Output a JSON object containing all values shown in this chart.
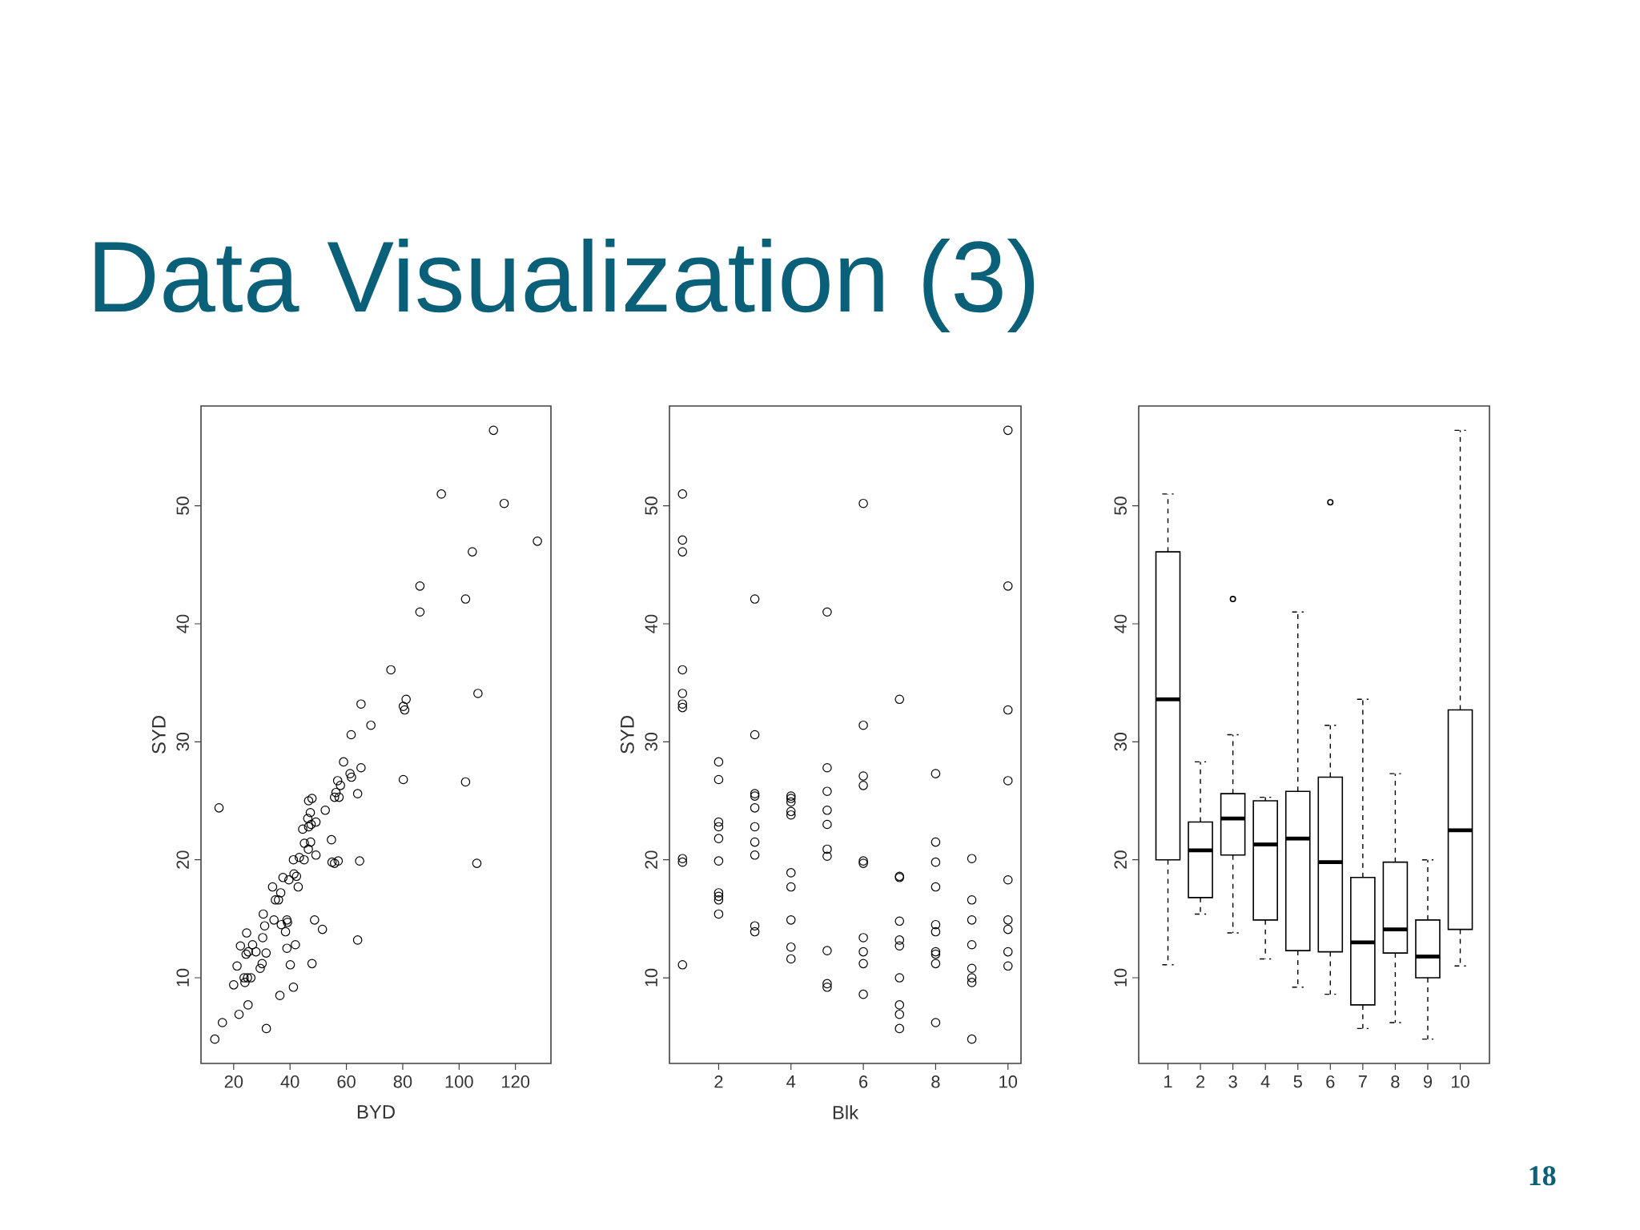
{
  "chart_data": [
    {
      "type": "scatter",
      "title": "Data Visualization (3)",
      "xlabel": "BYD",
      "ylabel": "SYD",
      "marker": "circle",
      "color": "#000000",
      "x": [
        112.2,
        93.7,
        116.0,
        127.8,
        104.7,
        86.1,
        102.3,
        86.1,
        75.8,
        106.7,
        81.2,
        65.2,
        80.2,
        80.7,
        68.7,
        61.7,
        59.0,
        65.2,
        61.3,
        61.8,
        80.2,
        102.3,
        56.9,
        57.9,
        56.3,
        57.4,
        55.8,
        64.0,
        46.6,
        47.8,
        52.5,
        47.2,
        46.3,
        49.2,
        47.5,
        44.5,
        46.6,
        54.7,
        45.1,
        47.3,
        46.5,
        49.2,
        43.3,
        45.0,
        41.2,
        54.9,
        55.8,
        57.1,
        64.7,
        106.3,
        41.4,
        42.3,
        37.5,
        39.6,
        36.7,
        35.9,
        34.8,
        33.8,
        42.9,
        30.5,
        34.3,
        38.9,
        39.1,
        48.7,
        31.0,
        36.9,
        51.5,
        38.4,
        24.6,
        30.3,
        64.0,
        22.4,
        26.7,
        41.9,
        38.9,
        25.2,
        24.4,
        27.9,
        31.5,
        21.2,
        30.1,
        29.4,
        40.1,
        47.8,
        23.7,
        24.9,
        26.1,
        24.0,
        20.0,
        41.2,
        36.4,
        25.1,
        21.9,
        16.0,
        31.6,
        13.3,
        14.8
      ],
      "values": [
        56.4,
        51.0,
        50.2,
        47.0,
        46.1,
        43.2,
        42.1,
        41.0,
        36.1,
        34.1,
        33.6,
        33.2,
        33.0,
        32.7,
        31.4,
        30.6,
        28.3,
        27.8,
        27.3,
        27.0,
        26.8,
        26.6,
        26.7,
        26.3,
        25.7,
        25.3,
        25.3,
        25.6,
        25.0,
        25.2,
        24.2,
        24.0,
        23.5,
        23.2,
        23.0,
        22.6,
        22.8,
        21.7,
        21.4,
        21.5,
        20.9,
        20.4,
        20.2,
        20.0,
        20.0,
        19.8,
        19.7,
        19.9,
        19.9,
        19.7,
        18.8,
        18.6,
        18.5,
        18.3,
        17.2,
        16.6,
        16.6,
        17.7,
        17.7,
        15.4,
        14.9,
        14.9,
        14.7,
        14.9,
        14.4,
        14.5,
        14.1,
        13.9,
        13.8,
        13.4,
        13.2,
        12.7,
        12.8,
        12.8,
        12.5,
        12.2,
        12.0,
        12.2,
        12.1,
        11.0,
        11.2,
        10.8,
        11.1,
        11.2,
        10.0,
        10.0,
        10.0,
        9.6,
        9.4,
        9.2,
        8.5,
        7.7,
        6.9,
        6.2,
        5.7,
        4.8,
        24.4
      ],
      "xlim": [
        8.4,
        132.6
      ],
      "ylim": [
        2.74,
        58.46
      ],
      "xticks": [
        20,
        40,
        60,
        80,
        100,
        120
      ],
      "yticks": [
        10,
        20,
        30,
        40,
        50
      ]
    },
    {
      "type": "scatter",
      "xlabel": "Blk",
      "ylabel": "SYD",
      "marker": "circle",
      "color": "#000000",
      "x": [
        1,
        1,
        1,
        1,
        1,
        1,
        1,
        1,
        1,
        1,
        2,
        2,
        2,
        2,
        2,
        2,
        2,
        2,
        2,
        2,
        3,
        3,
        3,
        3,
        3,
        3,
        3,
        3,
        3,
        3,
        4,
        4,
        4,
        4,
        4,
        4,
        4,
        4,
        4,
        4,
        5,
        5,
        5,
        5,
        5,
        5,
        5,
        5,
        5,
        5,
        6,
        6,
        6,
        6,
        6,
        6,
        6,
        6,
        6,
        6,
        7,
        7,
        7,
        7,
        7,
        7,
        7,
        7,
        7,
        7,
        8,
        8,
        8,
        8,
        8,
        8,
        8,
        8,
        8,
        8,
        9,
        9,
        9,
        9,
        9,
        9,
        9,
        9,
        10,
        10,
        10,
        10,
        10,
        10,
        10,
        10,
        10
      ],
      "values": [
        51.0,
        47.1,
        46.1,
        36.1,
        34.1,
        33.2,
        32.9,
        20.1,
        19.8,
        11.1,
        28.3,
        26.8,
        23.2,
        22.8,
        21.8,
        19.9,
        17.2,
        16.9,
        16.6,
        15.4,
        42.1,
        30.6,
        25.6,
        25.4,
        24.4,
        22.8,
        21.5,
        20.4,
        14.4,
        13.9,
        25.4,
        25.2,
        24.9,
        24.1,
        23.8,
        18.9,
        17.7,
        14.9,
        12.6,
        11.6,
        41.0,
        27.8,
        25.8,
        24.2,
        23.0,
        20.9,
        20.3,
        12.3,
        9.5,
        9.2,
        50.2,
        31.4,
        27.1,
        26.3,
        19.9,
        19.7,
        13.4,
        12.2,
        11.2,
        8.6,
        33.6,
        18.6,
        18.5,
        14.8,
        13.2,
        12.7,
        10.0,
        7.7,
        6.9,
        5.7,
        27.3,
        21.5,
        19.8,
        17.7,
        14.5,
        13.9,
        12.2,
        12.0,
        11.2,
        6.2,
        20.1,
        16.6,
        14.9,
        12.8,
        10.8,
        10.0,
        9.6,
        4.8,
        56.4,
        43.2,
        32.7,
        26.7,
        18.3,
        14.9,
        14.1,
        12.2,
        11.0
      ],
      "xlim": [
        0.64,
        10.36
      ],
      "ylim": [
        2.74,
        58.46
      ],
      "xticks": [
        2,
        4,
        6,
        8,
        10
      ],
      "yticks": [
        10,
        20,
        30,
        40,
        50
      ]
    },
    {
      "type": "box",
      "categories": [
        "1",
        "2",
        "3",
        "4",
        "5",
        "6",
        "7",
        "8",
        "9",
        "10"
      ],
      "color": "#000000",
      "boxes": [
        {
          "low": 11.1,
          "q1": 20.0,
          "median": 33.6,
          "q3": 46.1,
          "high": 51.0
        },
        {
          "low": 15.4,
          "q1": 16.8,
          "median": 20.8,
          "q3": 23.2,
          "high": 28.3
        },
        {
          "low": 13.8,
          "q1": 20.4,
          "median": 23.5,
          "q3": 25.6,
          "high": 30.6,
          "outliers": [
            42.1
          ]
        },
        {
          "low": 11.6,
          "q1": 14.9,
          "median": 21.3,
          "q3": 25.0,
          "high": 25.3
        },
        {
          "low": 9.2,
          "q1": 12.3,
          "median": 21.8,
          "q3": 25.8,
          "high": 41.0
        },
        {
          "low": 8.6,
          "q1": 12.2,
          "median": 19.8,
          "q3": 27.0,
          "high": 31.4,
          "outliers": [
            50.3
          ]
        },
        {
          "low": 5.7,
          "q1": 7.7,
          "median": 13.0,
          "q3": 18.5,
          "high": 33.6
        },
        {
          "low": 6.2,
          "q1": 12.1,
          "median": 14.1,
          "q3": 19.8,
          "high": 27.3
        },
        {
          "low": 4.8,
          "q1": 10.0,
          "median": 11.8,
          "q3": 14.9,
          "high": 20.0
        },
        {
          "low": 11.0,
          "q1": 14.1,
          "median": 22.5,
          "q3": 32.7,
          "high": 56.4
        }
      ],
      "ylim": [
        2.74,
        58.46
      ],
      "yticks": [
        10,
        20,
        30,
        40,
        50
      ],
      "annotations": [
        "18"
      ]
    }
  ]
}
